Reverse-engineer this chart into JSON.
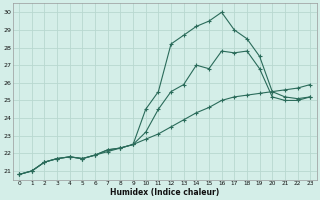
{
  "xlabel": "Humidex (Indice chaleur)",
  "ylabel": "",
  "xlim": [
    -0.5,
    23.5
  ],
  "ylim": [
    20.5,
    30.5
  ],
  "xticks": [
    0,
    1,
    2,
    3,
    4,
    5,
    6,
    7,
    8,
    9,
    10,
    11,
    12,
    13,
    14,
    15,
    16,
    17,
    18,
    19,
    20,
    21,
    22,
    23
  ],
  "yticks": [
    21,
    22,
    23,
    24,
    25,
    26,
    27,
    28,
    29,
    30
  ],
  "bg_color": "#d4eee8",
  "grid_color": "#b8d8d0",
  "line_color": "#2a6b5a",
  "lines": [
    {
      "x": [
        0,
        1,
        2,
        3,
        4,
        5,
        6,
        7,
        8,
        9,
        10,
        11,
        12,
        13,
        14,
        15,
        16,
        17,
        18,
        19,
        20,
        21,
        22,
        23
      ],
      "y": [
        20.8,
        21.0,
        21.5,
        21.7,
        21.8,
        21.7,
        21.9,
        22.1,
        22.3,
        22.5,
        22.8,
        23.1,
        23.5,
        23.9,
        24.3,
        24.6,
        25.0,
        25.2,
        25.3,
        25.4,
        25.5,
        25.6,
        25.7,
        25.9
      ]
    },
    {
      "x": [
        0,
        1,
        2,
        3,
        4,
        5,
        6,
        7,
        8,
        9,
        10,
        11,
        12,
        13,
        14,
        15,
        16,
        17,
        18,
        19,
        20,
        21,
        22,
        23
      ],
      "y": [
        20.8,
        21.0,
        21.5,
        21.7,
        21.8,
        21.7,
        21.9,
        22.2,
        22.3,
        22.5,
        23.2,
        24.5,
        25.5,
        25.9,
        27.0,
        26.8,
        27.8,
        27.7,
        27.8,
        26.8,
        25.2,
        25.0,
        25.0,
        25.2
      ]
    },
    {
      "x": [
        0,
        1,
        2,
        3,
        4,
        5,
        6,
        7,
        8,
        9,
        10,
        11,
        12,
        13,
        14,
        15,
        16,
        17,
        18,
        19,
        20,
        21,
        22,
        23
      ],
      "y": [
        20.8,
        21.0,
        21.5,
        21.7,
        21.8,
        21.7,
        21.9,
        22.2,
        22.3,
        22.5,
        24.5,
        25.5,
        28.2,
        28.7,
        29.2,
        29.5,
        30.0,
        29.0,
        28.5,
        27.5,
        25.5,
        25.2,
        25.1,
        25.2
      ]
    }
  ]
}
